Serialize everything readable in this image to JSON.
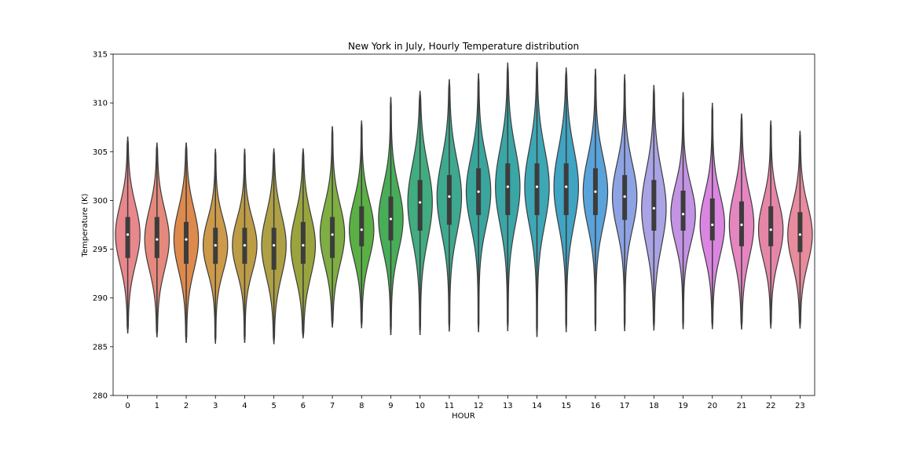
{
  "chart_data": {
    "type": "violin",
    "title": "New York in July, Hourly Temperature distribution",
    "xlabel": "HOUR",
    "ylabel": "Temperature (K)",
    "ylim": [
      280,
      315
    ],
    "yticks": [
      280,
      285,
      290,
      295,
      300,
      305,
      310,
      315
    ],
    "grid": false,
    "legend": "none",
    "categories": [
      "0",
      "1",
      "2",
      "3",
      "4",
      "5",
      "6",
      "7",
      "8",
      "9",
      "10",
      "11",
      "12",
      "13",
      "14",
      "15",
      "16",
      "17",
      "18",
      "19",
      "20",
      "21",
      "22",
      "23"
    ],
    "colors": [
      "#e8888c",
      "#e4897c",
      "#dd8a4c",
      "#cc9a4a",
      "#bd9c46",
      "#aea045",
      "#9aa43e",
      "#7fae42",
      "#5ab045",
      "#48ad58",
      "#41ac80",
      "#3ea98f",
      "#3aa59d",
      "#3ba6a6",
      "#3ea7b5",
      "#40a4c3",
      "#5aa3da",
      "#8ea3e4",
      "#aaa3e4",
      "#c393e4",
      "#da86e0",
      "#e586c0",
      "#e586a8",
      "#e88b9c"
    ],
    "series": [
      {
        "hour": "0",
        "min": 286.4,
        "q1": 294.1,
        "median": 296.5,
        "q3": 298.3,
        "max": 306.5
      },
      {
        "hour": "1",
        "min": 286.0,
        "q1": 294.1,
        "median": 296.0,
        "q3": 298.3,
        "max": 305.9
      },
      {
        "hour": "2",
        "min": 285.4,
        "q1": 293.5,
        "median": 296.0,
        "q3": 297.8,
        "max": 305.9
      },
      {
        "hour": "3",
        "min": 285.3,
        "q1": 293.5,
        "median": 295.4,
        "q3": 297.2,
        "max": 305.3
      },
      {
        "hour": "4",
        "min": 285.4,
        "q1": 293.5,
        "median": 295.4,
        "q3": 297.2,
        "max": 305.3
      },
      {
        "hour": "5",
        "min": 285.3,
        "q1": 292.9,
        "median": 295.4,
        "q3": 297.2,
        "max": 305.3
      },
      {
        "hour": "6",
        "min": 285.9,
        "q1": 293.5,
        "median": 295.4,
        "q3": 297.8,
        "max": 305.3
      },
      {
        "hour": "7",
        "min": 287.0,
        "q1": 294.1,
        "median": 296.5,
        "q3": 298.3,
        "max": 307.6
      },
      {
        "hour": "8",
        "min": 286.9,
        "q1": 295.3,
        "median": 297.0,
        "q3": 299.4,
        "max": 308.2
      },
      {
        "hour": "9",
        "min": 286.2,
        "q1": 295.9,
        "median": 298.1,
        "q3": 300.4,
        "max": 310.6
      },
      {
        "hour": "10",
        "min": 286.2,
        "q1": 296.9,
        "median": 299.8,
        "q3": 302.1,
        "max": 311.2
      },
      {
        "hour": "11",
        "min": 286.6,
        "q1": 297.5,
        "median": 300.4,
        "q3": 302.6,
        "max": 312.4
      },
      {
        "hour": "12",
        "min": 286.5,
        "q1": 298.5,
        "median": 300.9,
        "q3": 303.3,
        "max": 313.0
      },
      {
        "hour": "13",
        "min": 286.6,
        "q1": 298.5,
        "median": 301.4,
        "q3": 303.8,
        "max": 314.1
      },
      {
        "hour": "14",
        "min": 286.0,
        "q1": 298.5,
        "median": 301.4,
        "q3": 303.8,
        "max": 314.2
      },
      {
        "hour": "15",
        "min": 286.5,
        "q1": 298.5,
        "median": 301.4,
        "q3": 303.8,
        "max": 313.6
      },
      {
        "hour": "16",
        "min": 286.6,
        "q1": 298.5,
        "median": 300.9,
        "q3": 303.3,
        "max": 313.5
      },
      {
        "hour": "17",
        "min": 286.6,
        "q1": 298.0,
        "median": 300.4,
        "q3": 302.6,
        "max": 312.9
      },
      {
        "hour": "18",
        "min": 286.7,
        "q1": 296.9,
        "median": 299.2,
        "q3": 302.1,
        "max": 311.8
      },
      {
        "hour": "19",
        "min": 286.8,
        "q1": 296.9,
        "median": 298.6,
        "q3": 301.0,
        "max": 311.1
      },
      {
        "hour": "20",
        "min": 286.8,
        "q1": 295.9,
        "median": 297.5,
        "q3": 300.2,
        "max": 310.0
      },
      {
        "hour": "21",
        "min": 286.8,
        "q1": 295.3,
        "median": 297.5,
        "q3": 299.9,
        "max": 308.9
      },
      {
        "hour": "22",
        "min": 286.9,
        "q1": 295.3,
        "median": 297.0,
        "q3": 299.4,
        "max": 308.2
      },
      {
        "hour": "23",
        "min": 286.9,
        "q1": 294.7,
        "median": 296.5,
        "q3": 298.8,
        "max": 307.1
      }
    ]
  }
}
